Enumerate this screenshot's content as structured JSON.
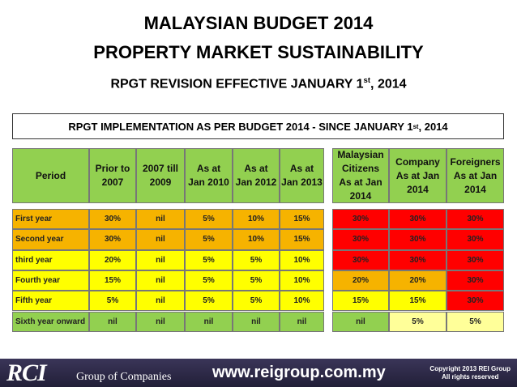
{
  "header": {
    "title_lines": [
      "MALAYSIAN BUDGET 2014",
      "PROPERTY MARKET SUSTAINABILITY"
    ],
    "subtitle": [
      "RPGT REVISION EFFECTIVE JANUARY 1",
      "st",
      ", 2014"
    ]
  },
  "banner": [
    "RPGT IMPLEMENTATION AS PER BUDGET 2014 - SINCE JANUARY 1",
    "st",
    ", 2014"
  ],
  "left_table": {
    "header": [
      [
        "Period"
      ],
      [
        "Prior to",
        "2007"
      ],
      [
        "2007 till",
        "2009"
      ],
      [
        "As at",
        "Jan 2010"
      ],
      [
        "As at",
        "Jan 2012"
      ],
      [
        "As at",
        "Jan 2013"
      ]
    ],
    "rows": [
      [
        "First year",
        "30%",
        "nil",
        "5%",
        "10%",
        "15%"
      ],
      [
        "Second year",
        "30%",
        "nil",
        "5%",
        "10%",
        "15%"
      ],
      [
        "third year",
        "20%",
        "nil",
        "5%",
        "5%",
        "10%"
      ],
      [
        "Fourth year",
        "15%",
        "nil",
        "5%",
        "5%",
        "10%"
      ],
      [
        "Fifth year",
        "5%",
        "nil",
        "5%",
        "5%",
        "10%"
      ],
      [
        "Sixth year onward",
        "nil",
        "nil",
        "nil",
        "nil",
        "nil"
      ]
    ]
  },
  "right_table": {
    "header": [
      [
        "Malaysian",
        "Citizens",
        "As at Jan",
        "2014"
      ],
      [
        "Company",
        "As at Jan",
        "2014"
      ],
      [
        "Foreigners",
        "As at Jan",
        "2014"
      ]
    ],
    "rows": [
      [
        "30%",
        "30%",
        "30%"
      ],
      [
        "30%",
        "30%",
        "30%"
      ],
      [
        "30%",
        "30%",
        "30%"
      ],
      [
        "20%",
        "20%",
        "30%"
      ],
      [
        "15%",
        "15%",
        "30%"
      ],
      [
        "nil",
        "5%",
        "5%"
      ]
    ]
  },
  "footer": {
    "logo": "RCI",
    "group": "Group of Companies",
    "url": "www.reigroup.com.my",
    "copyright": [
      "Copyright 2013 REI Group",
      "All rights reserved"
    ]
  }
}
